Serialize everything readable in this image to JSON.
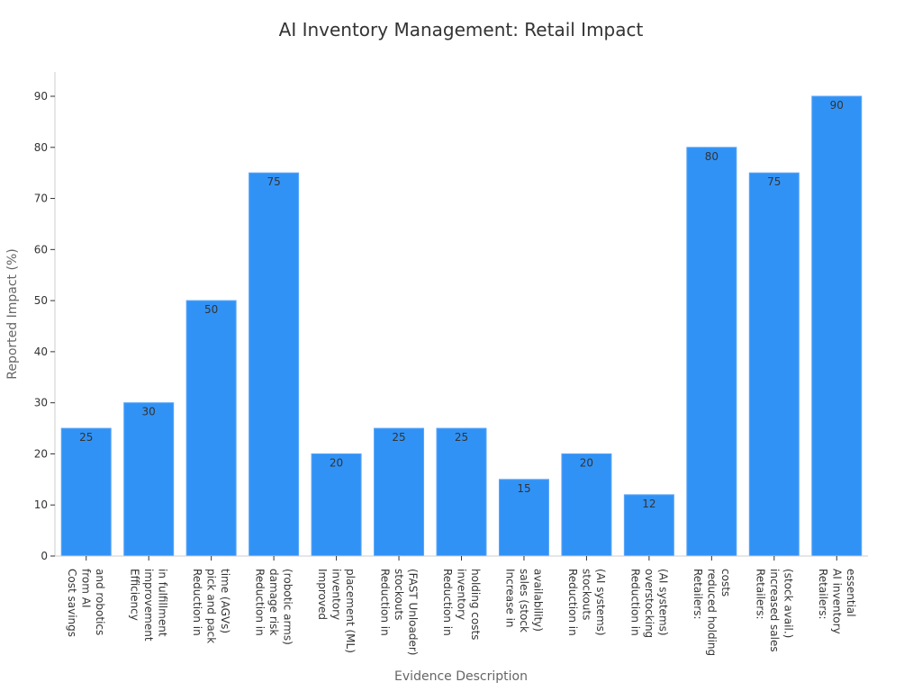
{
  "chart_data": {
    "type": "bar",
    "title": "AI Inventory Management: Retail Impact",
    "xlabel": "Evidence Description",
    "ylabel": "Reported Impact (%)",
    "ylim": [
      0,
      95
    ],
    "yticks": [
      0,
      10,
      20,
      30,
      40,
      50,
      60,
      70,
      80,
      90
    ],
    "bar_color": "#3192f6",
    "grid": false,
    "categories": [
      [
        "Cost savings",
        "from AI",
        "and robotics"
      ],
      [
        "Efficiency",
        "improvement",
        "in fulfillment"
      ],
      [
        "Reduction in",
        "pick and pack",
        "time (AGVs)"
      ],
      [
        "Reduction in",
        "damage risk",
        "(robotic arms)"
      ],
      [
        "Improved",
        "inventory",
        "placement (ML)"
      ],
      [
        "Reduction in",
        "stockouts",
        "(FAST Unloader)"
      ],
      [
        "Reduction in",
        "inventory",
        "holding costs"
      ],
      [
        "Increase in",
        "sales (stock",
        "availability)"
      ],
      [
        "Reduction in",
        "stockouts",
        "(AI systems)"
      ],
      [
        "Reduction in",
        "overstocking",
        "(AI systems)"
      ],
      [
        "Retailers:",
        "reduced holding",
        "costs"
      ],
      [
        "Retailers:",
        "increased sales",
        "(stock avail.)"
      ],
      [
        "Retailers:",
        "AI inventory",
        "essential"
      ]
    ],
    "values": [
      25,
      30,
      50,
      75,
      20,
      25,
      25,
      15,
      20,
      12,
      80,
      75,
      90
    ]
  }
}
